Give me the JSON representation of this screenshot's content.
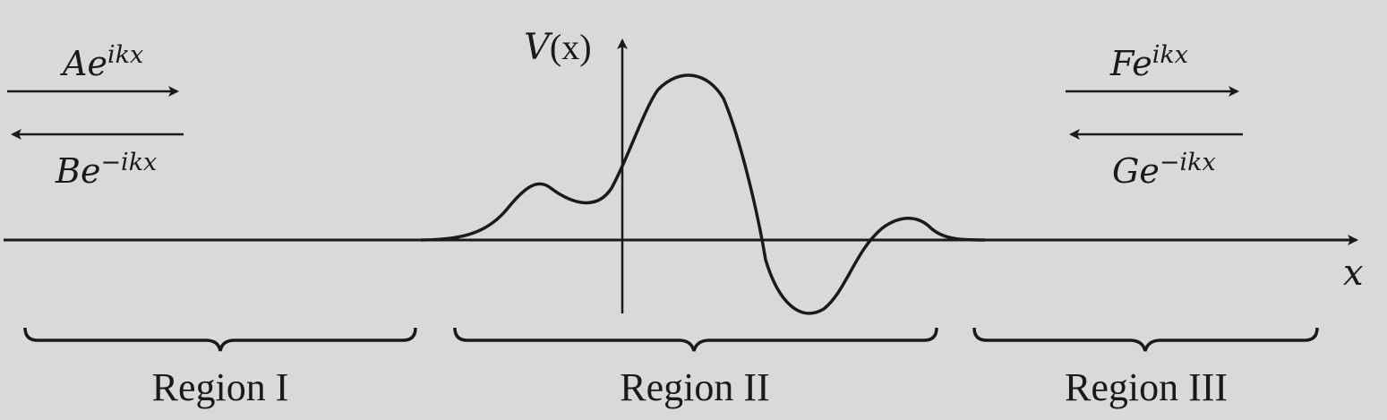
{
  "colors": {
    "background": "#d9d9d9",
    "ink": "#1a1a1a"
  },
  "labels": {
    "potential_axis": {
      "base": "V",
      "arg": "(x)"
    },
    "x_axis": "x",
    "incident_right": {
      "coef": "A",
      "base": "e",
      "exp": "ikx"
    },
    "reflected_left": {
      "coef": "B",
      "base": "e",
      "exp": "−ikx"
    },
    "transmitted_right": {
      "coef": "F",
      "base": "e",
      "exp": "ikx"
    },
    "incoming_left": {
      "coef": "G",
      "base": "e",
      "exp": "−ikx"
    }
  },
  "regions": [
    {
      "label": "Region I"
    },
    {
      "label": "Region II"
    },
    {
      "label": "Region III"
    }
  ]
}
